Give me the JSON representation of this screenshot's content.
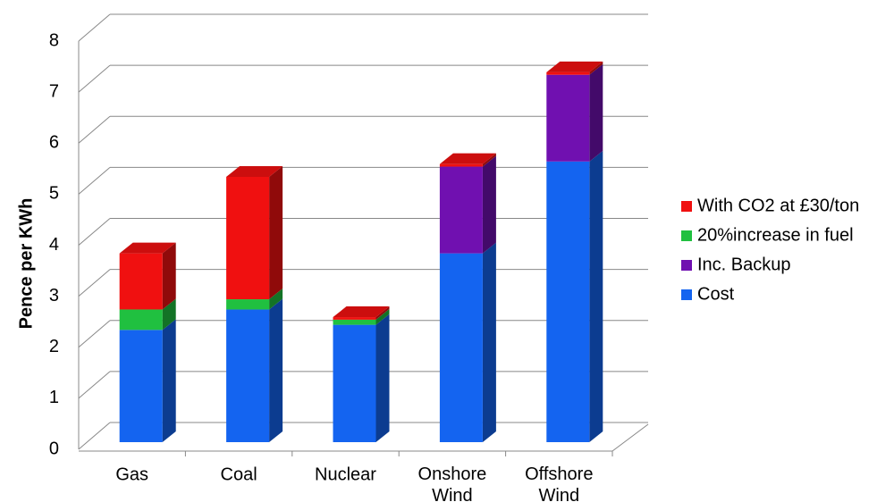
{
  "chart_data": {
    "type": "bar3d_stacked",
    "y_label": "Pence per KWh",
    "categories": [
      "Gas",
      "Coal",
      "Nuclear",
      "Onshore Wind",
      "Offshore Wind"
    ],
    "series": [
      {
        "name": "Cost",
        "color": "#1464f0",
        "values": [
          2.2,
          2.6,
          2.3,
          3.7,
          5.5
        ]
      },
      {
        "name": "Inc. Backup",
        "color": "#7010b0",
        "values": [
          0,
          0,
          0,
          1.7,
          1.7
        ]
      },
      {
        "name": "20%increase in fuel",
        "color": "#20c040",
        "values": [
          0.4,
          0.2,
          0.1,
          0,
          0
        ]
      },
      {
        "name": "With CO2 at £30/ton",
        "color": "#f01010",
        "values": [
          1.1,
          2.4,
          0.05,
          0.05,
          0.05
        ]
      }
    ],
    "ylim": [
      0,
      8
    ],
    "yticks": [
      0,
      1,
      2,
      3,
      4,
      5,
      6,
      7,
      8
    ],
    "grid": true,
    "legend": "right"
  }
}
